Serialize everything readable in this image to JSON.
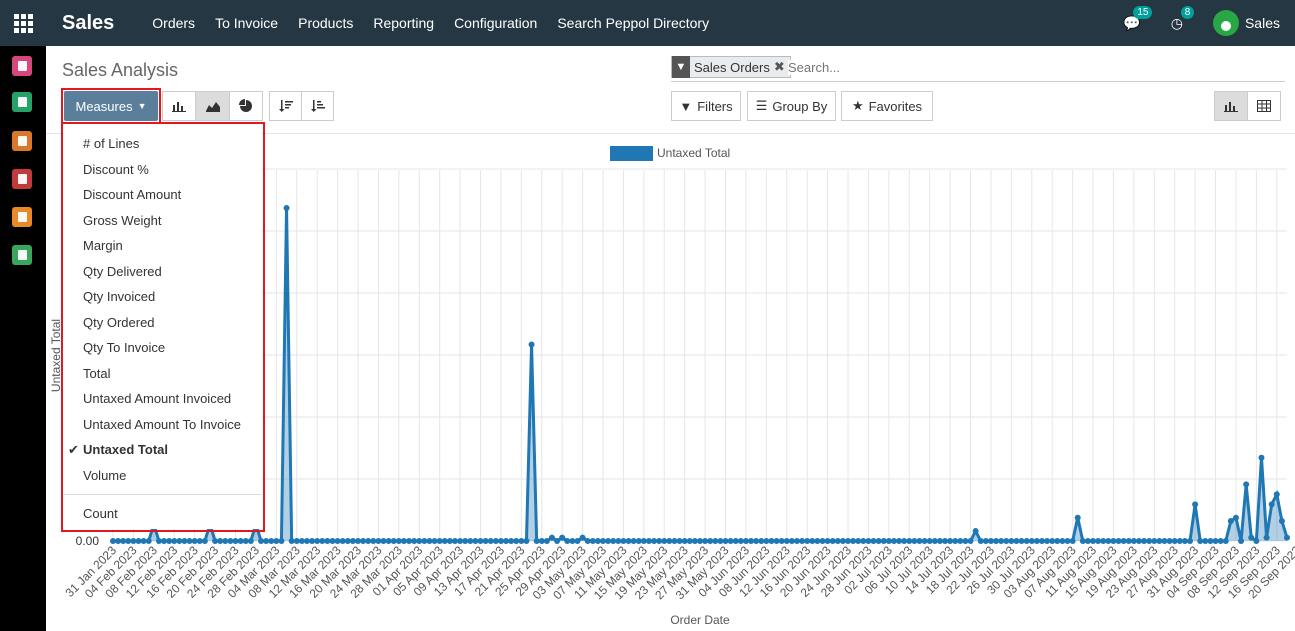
{
  "app": {
    "name": "Sales",
    "menu": [
      "Orders",
      "To Invoice",
      "Products",
      "Reporting",
      "Configuration",
      "Search Peppol Directory"
    ],
    "messages_count": "15",
    "activities_count": "8",
    "user": "Sales"
  },
  "sidebar": {
    "icons": [
      {
        "name": "discuss-icon",
        "color": "#d6477d"
      },
      {
        "name": "contacts-icon",
        "color": "#26a269"
      },
      {
        "name": "crm-icon",
        "color": "#d9772d"
      },
      {
        "name": "inventory-icon",
        "color": "#c23b3b"
      },
      {
        "name": "invoicing-icon",
        "color": "#e88a2a"
      },
      {
        "name": "documents-icon",
        "color": "#3aa65b"
      }
    ]
  },
  "page": {
    "title": "Sales Analysis",
    "search_facet": "Sales Orders",
    "search_placeholder": "Search...",
    "measures_label": "Measures",
    "filters_label": "Filters",
    "groupby_label": "Group By",
    "favorites_label": "Favorites"
  },
  "measures": {
    "items": [
      {
        "label": "# of Lines",
        "checked": false
      },
      {
        "label": "Discount %",
        "checked": false
      },
      {
        "label": "Discount Amount",
        "checked": false
      },
      {
        "label": "Gross Weight",
        "checked": false
      },
      {
        "label": "Margin",
        "checked": false
      },
      {
        "label": "Qty Delivered",
        "checked": false
      },
      {
        "label": "Qty Invoiced",
        "checked": false
      },
      {
        "label": "Qty Ordered",
        "checked": false
      },
      {
        "label": "Qty To Invoice",
        "checked": false
      },
      {
        "label": "Total",
        "checked": false
      },
      {
        "label": "Untaxed Amount Invoiced",
        "checked": false
      },
      {
        "label": "Untaxed Amount To Invoice",
        "checked": false
      },
      {
        "label": "Untaxed Total",
        "checked": true
      },
      {
        "label": "Volume",
        "checked": false
      }
    ],
    "count_label": "Count"
  },
  "chart_data": {
    "type": "area",
    "legend": [
      "Untaxed Total"
    ],
    "xlabel": "Order Date",
    "ylabel": "Untaxed Total",
    "y_tick_visible": "0.00",
    "color": "#1f77b4",
    "x_tick_labels": [
      "31 Jan 2023",
      "04 Feb 2023",
      "08 Feb 2023",
      "12 Feb 2023",
      "16 Feb 2023",
      "20 Feb 2023",
      "24 Feb 2023",
      "28 Feb 2023",
      "04 Mar 2023",
      "08 Mar 2023",
      "12 Mar 2023",
      "16 Mar 2023",
      "20 Mar 2023",
      "24 Mar 2023",
      "28 Mar 2023",
      "01 Apr 2023",
      "05 Apr 2023",
      "09 Apr 2023",
      "13 Apr 2023",
      "17 Apr 2023",
      "21 Apr 2023",
      "25 Apr 2023",
      "29 Apr 2023",
      "03 May 2023",
      "07 May 2023",
      "11 May 2023",
      "15 May 2023",
      "19 May 2023",
      "23 May 2023",
      "27 May 2023",
      "31 May 2023",
      "04 Jun 2023",
      "08 Jun 2023",
      "12 Jun 2023",
      "16 Jun 2023",
      "20 Jun 2023",
      "24 Jun 2023",
      "28 Jun 2023",
      "02 Jul 2023",
      "06 Jul 2023",
      "10 Jul 2023",
      "14 Jul 2023",
      "18 Jul 2023",
      "22 Jul 2023",
      "26 Jul 2023",
      "30 Jul 2023",
      "03 Aug 2023",
      "07 Aug 2023",
      "11 Aug 2023",
      "15 Aug 2023",
      "19 Aug 2023",
      "23 Aug 2023",
      "27 Aug 2023",
      "31 Aug 2023",
      "04 Sep 2023",
      "08 Sep 2023",
      "12 Sep 2023",
      "16 Sep 2023",
      "20 Sep 2023"
    ],
    "peaks": [
      {
        "day": 8,
        "value": 0.05
      },
      {
        "day": 19,
        "value": 0.05
      },
      {
        "day": 28,
        "value": 0.05
      },
      {
        "day": 34,
        "value": 1.0
      },
      {
        "day": 82,
        "value": 0.59
      },
      {
        "day": 86,
        "value": 0.01
      },
      {
        "day": 88,
        "value": 0.01
      },
      {
        "day": 92,
        "value": 0.01
      },
      {
        "day": 169,
        "value": 0.03
      },
      {
        "day": 189,
        "value": 0.07
      },
      {
        "day": 212,
        "value": 0.11
      },
      {
        "day": 219,
        "value": 0.06
      },
      {
        "day": 220,
        "value": 0.07
      },
      {
        "day": 222,
        "value": 0.17
      },
      {
        "day": 223,
        "value": 0.01
      },
      {
        "day": 225,
        "value": 0.25
      },
      {
        "day": 226,
        "value": 0.01
      },
      {
        "day": 227,
        "value": 0.11
      },
      {
        "day": 228,
        "value": 0.14
      },
      {
        "day": 229,
        "value": 0.06
      },
      {
        "day": 230,
        "value": 0.01
      }
    ],
    "num_days": 231
  }
}
